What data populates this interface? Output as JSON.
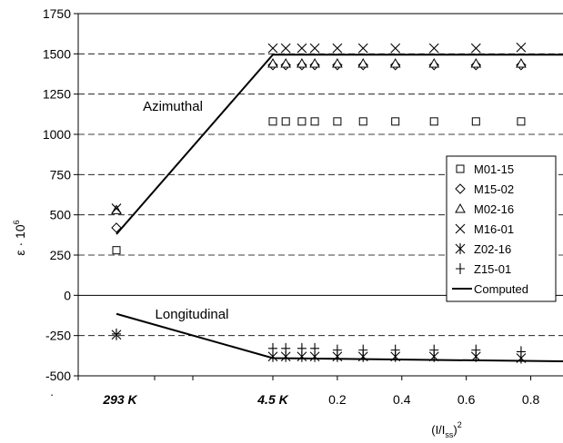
{
  "chart_data": {
    "type": "scatter",
    "ylabel": "ε · 10⁶",
    "ylabel_base": "ε · 10",
    "ylabel_exp": "6",
    "xlabel": "(I/Iss)²",
    "xlabel_main": "(I/I",
    "xlabel_sub": "ss",
    "xlabel_close": ")",
    "xlabel_exp": "2",
    "ylim": [
      -500,
      1750
    ],
    "y_ticks": [
      "1750",
      "1500",
      "1250",
      "1000",
      "750",
      "500",
      "250",
      "0",
      "-250",
      "-500"
    ],
    "y_tick_values": [
      1750,
      1500,
      1250,
      1000,
      750,
      500,
      250,
      0,
      -250,
      -500
    ],
    "x_ticks": [
      "0.2",
      "0.4",
      "0.6",
      "0.8"
    ],
    "x_tick_values": [
      0.2,
      0.4,
      0.6,
      0.8
    ],
    "x_axis_leading_label": ".",
    "xlim": [
      0,
      0.9
    ],
    "temperature_labels": [
      "293 K",
      "4.5 K"
    ],
    "grid": "horizontal dashed",
    "legend_placement": "right",
    "annotations": [
      "Azimuthal",
      "Longitudinal"
    ],
    "current_values": [
      0.0,
      0.04,
      0.09,
      0.13,
      0.2,
      0.28,
      0.38,
      0.5,
      0.63,
      0.77
    ],
    "series": [
      {
        "name": "M01-15",
        "marker": "square",
        "warm": 280,
        "values": [
          1080,
          1080,
          1080,
          1080,
          1080,
          1080,
          1080,
          1080,
          1080,
          1080
        ]
      },
      {
        "name": "M15-02",
        "marker": "diamond",
        "warm": 420,
        "values": [
          1430,
          1430,
          1430,
          1430,
          1430,
          1430,
          1430,
          1430,
          1430,
          1430
        ]
      },
      {
        "name": "M02-16",
        "marker": "triangle",
        "warm": 530,
        "values": [
          1440,
          1440,
          1440,
          1440,
          1440,
          1440,
          1440,
          1440,
          1440,
          1440
        ]
      },
      {
        "name": "M16-01",
        "marker": "x",
        "warm": 540,
        "values": [
          1535,
          1535,
          1535,
          1535,
          1535,
          1535,
          1535,
          1535,
          1535,
          1540
        ]
      },
      {
        "name": "Z02-16",
        "marker": "asterisk",
        "warm": -245,
        "values": [
          -380,
          -380,
          -380,
          -380,
          -380,
          -380,
          -380,
          -380,
          -380,
          -390
        ]
      },
      {
        "name": "Z15-01",
        "marker": "plus",
        "warm": -240,
        "values": [
          -330,
          -330,
          -330,
          -330,
          -340,
          -340,
          -340,
          -340,
          -340,
          -350
        ]
      }
    ],
    "computed": {
      "name": "Computed",
      "azimuthal": {
        "warm": 380,
        "cold": 1495,
        "end": 1495
      },
      "longitudinal": {
        "warm": -115,
        "cold": -390,
        "end": -410
      }
    }
  }
}
